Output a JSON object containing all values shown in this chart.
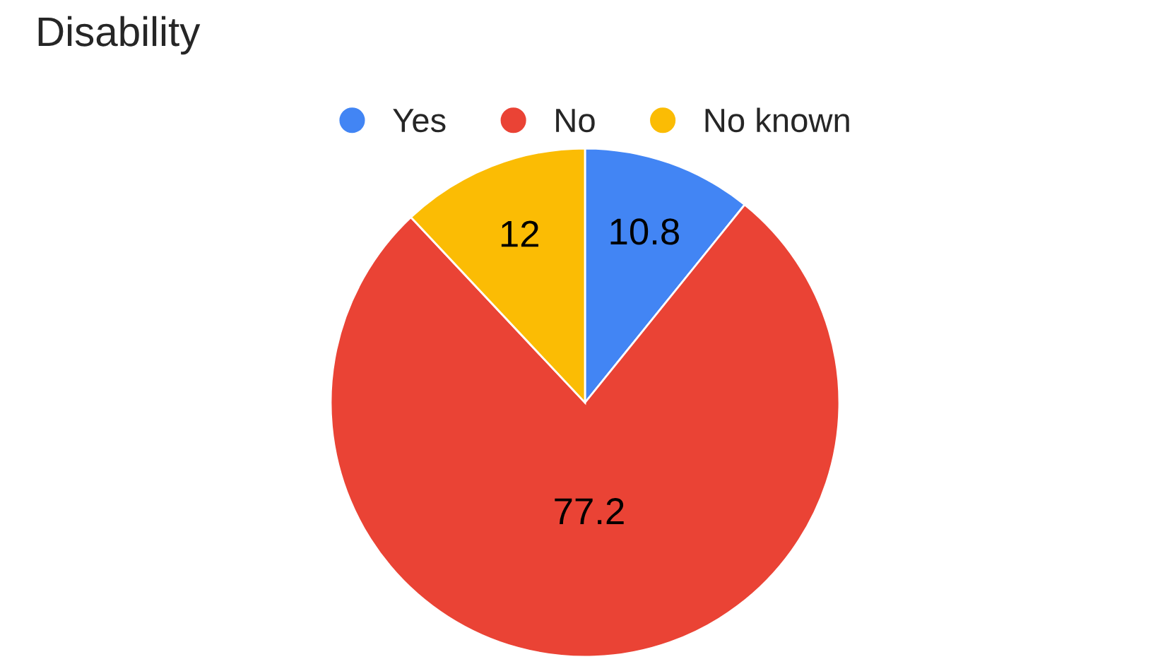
{
  "chart_data": {
    "type": "pie",
    "title": "Disability",
    "categories": [
      "Yes",
      "No",
      "No known"
    ],
    "values": [
      10.8,
      77.2,
      12
    ],
    "colors": [
      "#4285f4",
      "#ea4335",
      "#fbbc04"
    ],
    "data_labels": true,
    "legend": "top"
  }
}
